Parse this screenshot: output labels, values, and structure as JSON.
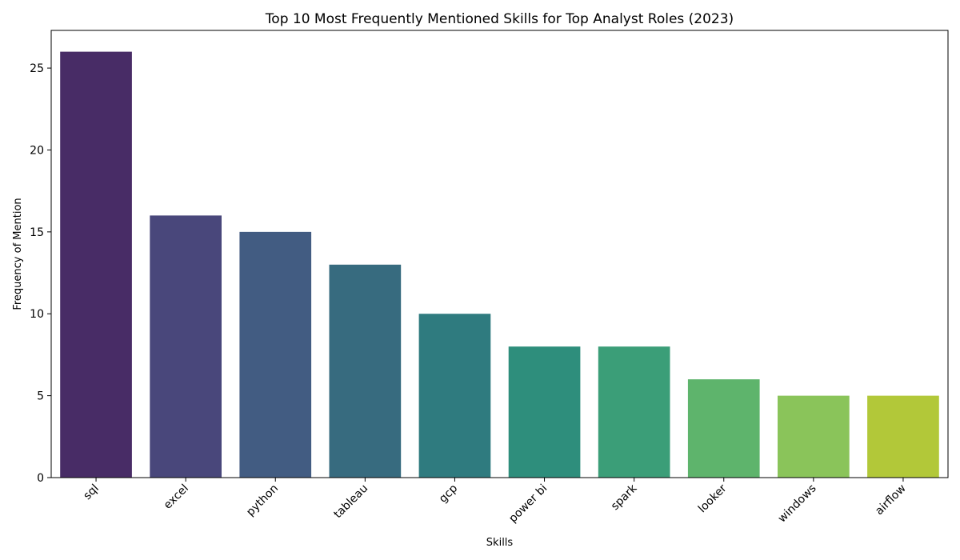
{
  "chart_data": {
    "type": "bar",
    "title": "Top 10 Most Frequently Mentioned Skills for Top Analyst Roles (2023)",
    "xlabel": "Skills",
    "ylabel": "Frequency of Mention",
    "categories": [
      "sql",
      "excel",
      "python",
      "tableau",
      "gcp",
      "power bi",
      "spark",
      "looker",
      "windows",
      "airflow"
    ],
    "values": [
      26,
      16,
      15,
      13,
      10,
      8,
      8,
      6,
      5,
      5
    ],
    "colors": [
      "#482c66",
      "#49477b",
      "#425c82",
      "#376b7f",
      "#2f7b7f",
      "#2e8e7c",
      "#3b9e78",
      "#5eb46c",
      "#8ac45a",
      "#b2c839"
    ],
    "ylim": [
      0,
      27.3
    ],
    "yticks": [
      0,
      5,
      10,
      15,
      20,
      25
    ],
    "grid": false,
    "legend": "none"
  }
}
